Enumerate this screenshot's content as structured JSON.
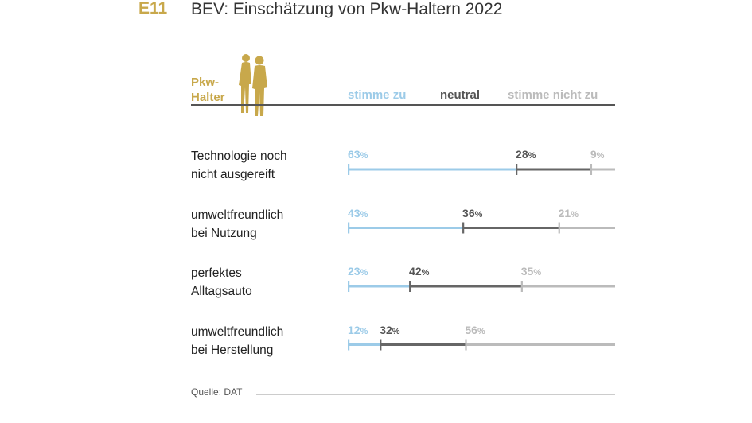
{
  "header": {
    "code": "E11",
    "title": "BEV: Einschätzung von Pkw-Haltern 2022"
  },
  "group_label": {
    "line1": "Pkw-",
    "line2": "Halter"
  },
  "colors": {
    "agree": "#9ccbe8",
    "neutral": "#666666",
    "disagree": "#bbbbbb",
    "gold": "#c8a84b"
  },
  "chart_data": {
    "type": "bar",
    "stacked": true,
    "orientation": "horizontal",
    "title": "BEV: Einschätzung von Pkw-Haltern 2022",
    "unit": "%",
    "categories": [
      [
        "Technologie noch",
        "nicht ausgereift"
      ],
      [
        "umweltfreundlich",
        "bei Nutzung"
      ],
      [
        "perfektes",
        "Alltagsauto"
      ],
      [
        "umweltfreundlich",
        "bei Herstellung"
      ]
    ],
    "series": [
      {
        "name": "stimme zu",
        "values": [
          63,
          43,
          23,
          12
        ]
      },
      {
        "name": "neutral",
        "values": [
          28,
          36,
          42,
          32
        ]
      },
      {
        "name": "stimme nicht zu",
        "values": [
          9,
          21,
          35,
          56
        ]
      }
    ],
    "xlim": [
      0,
      100
    ]
  },
  "source": "Quelle: DAT"
}
